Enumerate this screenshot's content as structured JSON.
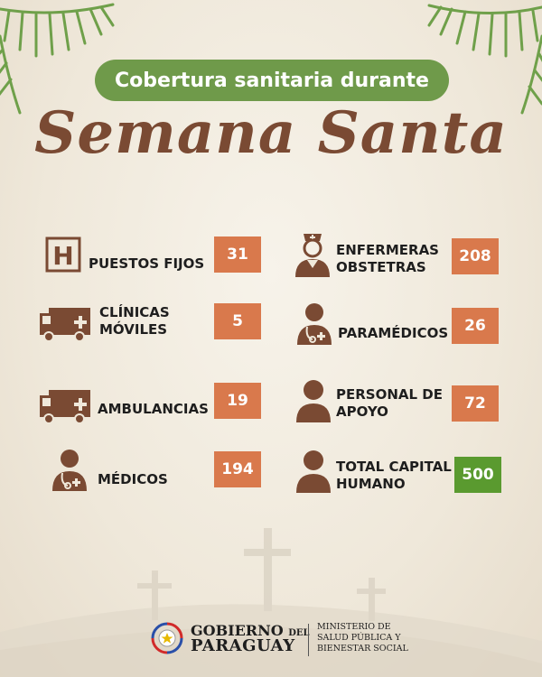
{
  "header": {
    "pill_text": "Cobertura sanitaria durante",
    "script_title": "Semana Santa"
  },
  "colors": {
    "accent_green": "#6f9a4a",
    "number_orange": "#d9794c",
    "total_green": "#5a9a2f",
    "icon_brown": "#7a4a33",
    "background": "#efe8da"
  },
  "items": [
    {
      "label_lines": [
        "PUESTOS FIJOS"
      ],
      "value": "31",
      "icon": "hospital-h-icon"
    },
    {
      "label_lines": [
        "CLÍNICAS",
        "MÓVILES"
      ],
      "value": "5",
      "icon": "mobile-clinic-icon"
    },
    {
      "label_lines": [
        "AMBULANCIAS"
      ],
      "value": "19",
      "icon": "ambulance-icon"
    },
    {
      "label_lines": [
        "MÉDICOS"
      ],
      "value": "194",
      "icon": "doctor-icon"
    },
    {
      "label_lines": [
        "ENFERMERAS",
        "OBSTETRAS"
      ],
      "value": "208",
      "icon": "nurse-icon"
    },
    {
      "label_lines": [
        "PARAMÉDICOS"
      ],
      "value": "26",
      "icon": "paramedic-icon"
    },
    {
      "label_lines": [
        "PERSONAL DE",
        "APOYO"
      ],
      "value": "72",
      "icon": "person-icon"
    },
    {
      "label_lines": [
        "TOTAL CAPITAL",
        "HUMANO"
      ],
      "value": "500",
      "icon": "person-icon"
    }
  ],
  "footer": {
    "gobierno_a": "GOBIERNO",
    "gobierno_del": "DEL",
    "paraguay": "PARAGUAY",
    "ministerio_lines": [
      "MINISTERIO DE",
      "SALUD PÚBLICA Y",
      "BIENESTAR SOCIAL"
    ]
  }
}
